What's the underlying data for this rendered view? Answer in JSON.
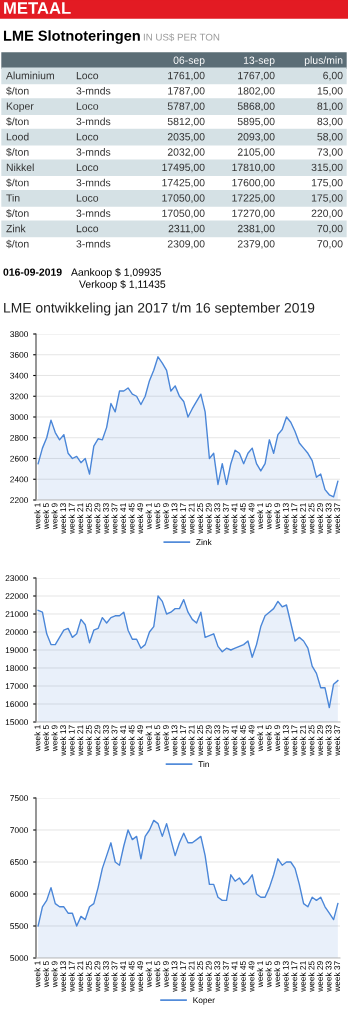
{
  "chart_data": [
    {
      "type": "other",
      "title": "METAAL",
      "subtitle": "LME Slotnoteringen",
      "categories": [
        null,
        null,
        "06-sep",
        "13-sep",
        "plus/min"
      ],
      "cell_labels": [
        [
          "Aluminium",
          "Loco",
          "1761,00",
          "1767,00",
          "6,00"
        ],
        [
          "$/ton",
          "3-mnds",
          "1787,00",
          "1802,00",
          "15,00"
        ],
        [
          "Koper",
          "Loco",
          "5787,00",
          "5868,00",
          "81,00"
        ],
        [
          "$/ton",
          "3-mnds",
          "5812,00",
          "5895,00",
          "83,00"
        ],
        [
          "Lood",
          "Loco",
          "2035,00",
          "2093,00",
          "58,00"
        ],
        [
          "$/ton",
          "3-mnds",
          "2032,00",
          "2105,00",
          "73,00"
        ],
        [
          "Nikkel",
          "Loco",
          "17495,00",
          "17810,00",
          "315,00"
        ],
        [
          "$/ton",
          "3-mnds",
          "17425,00",
          "17600,00",
          "175,00"
        ],
        [
          "Tin",
          "Loco",
          "17050,00",
          "17225,00",
          "175,00"
        ],
        [
          "$/ton",
          "3-mnds",
          "17050,00",
          "17270,00",
          "220,00"
        ],
        [
          "Zink",
          "Loco",
          "2311,00",
          "2381,00",
          "70,00"
        ],
        [
          "$/ton",
          "3-mnds",
          "2309,00",
          "2379,00",
          "70,00"
        ]
      ],
      "annotations": [
        "IN US$ PER TON",
        "016-09-2019",
        "Aankoop $ 1,09935",
        "Verkoop $ 1,11435",
        "LME ontwikkeling jan 2017 t/m 16 september 2019"
      ]
    },
    {
      "type": "area",
      "grid": "y",
      "legend": "bottom",
      "ylim": [
        2200,
        3800
      ],
      "yticks": [
        2200,
        2400,
        2600,
        2800,
        3000,
        3200,
        3400,
        3600,
        3800
      ],
      "categories": [
        "week 1",
        null,
        "week 5",
        null,
        "week 9",
        null,
        "week 13",
        null,
        "week 17",
        null,
        "week 21",
        null,
        "week 25",
        null,
        "week 29",
        null,
        "week 33",
        null,
        "week 37",
        null,
        "week 41",
        null,
        "week 45",
        null,
        "week 49",
        null,
        "week 1",
        null,
        "week 5",
        null,
        "week 9",
        null,
        "week 13",
        null,
        "week 17",
        null,
        "week 21",
        null,
        "week 25",
        null,
        "week 29",
        null,
        "week 33",
        null,
        "week 37",
        null,
        "week 41",
        null,
        "week 45",
        null,
        "week 49",
        null,
        "week 1",
        null,
        "week 5",
        null,
        "week 9",
        null,
        "week 13",
        null,
        "week 17",
        null,
        "week 21",
        null,
        "week 25",
        null,
        "week 29",
        null,
        "week 33",
        null,
        "week 37"
      ],
      "series": [
        {
          "name": "Zink",
          "color": "#4a86d8",
          "values": [
            2550,
            2700,
            2800,
            2970,
            2850,
            2780,
            2830,
            2650,
            2600,
            2620,
            2560,
            2600,
            2450,
            2720,
            2790,
            2780,
            2900,
            3130,
            3050,
            3250,
            3250,
            3280,
            3220,
            3200,
            3120,
            3200,
            3350,
            3450,
            3580,
            3520,
            3450,
            3250,
            3300,
            3200,
            3150,
            3000,
            3080,
            3150,
            3220,
            3050,
            2600,
            2650,
            2350,
            2550,
            2350,
            2550,
            2680,
            2650,
            2550,
            2650,
            2700,
            2550,
            2480,
            2550,
            2780,
            2650,
            2830,
            2880,
            3000,
            2950,
            2860,
            2750,
            2700,
            2650,
            2580,
            2420,
            2450,
            2300,
            2250,
            2230,
            2380
          ]
        }
      ]
    },
    {
      "type": "area",
      "grid": "y",
      "legend": "bottom",
      "ylim": [
        15000,
        23000
      ],
      "yticks": [
        15000,
        16000,
        17000,
        18000,
        19000,
        20000,
        21000,
        22000,
        23000
      ],
      "categories": [
        "week 1",
        null,
        "week 5",
        null,
        "week 9",
        null,
        "week 13",
        null,
        "week 17",
        null,
        "week 21",
        null,
        "week 25",
        null,
        "week 29",
        null,
        "week 33",
        null,
        "week 37",
        null,
        "week 41",
        null,
        "week 45",
        null,
        "week 49",
        null,
        "week 1",
        null,
        "week 5",
        null,
        "week 9",
        null,
        "week 13",
        null,
        "week 17",
        null,
        "week 21",
        null,
        "week 25",
        null,
        "week 29",
        null,
        "week 33",
        null,
        "week 37",
        null,
        "week 41",
        null,
        "week 45",
        null,
        "week 49",
        null,
        "week 1",
        null,
        "week 5",
        null,
        "week 9",
        null,
        "week 13",
        null,
        "week 17",
        null,
        "week 21",
        null,
        "week 25",
        null,
        "week 29",
        null,
        "week 33",
        null,
        "week 37"
      ],
      "series": [
        {
          "name": "Tin",
          "color": "#4a86d8",
          "values": [
            21200,
            21100,
            19900,
            19300,
            19300,
            19700,
            20100,
            20200,
            19700,
            19900,
            20700,
            20400,
            19400,
            20100,
            20200,
            20800,
            20500,
            20800,
            20900,
            20900,
            21100,
            20100,
            19600,
            19600,
            19100,
            19300,
            20000,
            20300,
            22000,
            21700,
            21000,
            21100,
            21300,
            21300,
            21800,
            21100,
            20700,
            20500,
            21100,
            19700,
            19800,
            19900,
            19200,
            18900,
            19100,
            19000,
            19100,
            19200,
            19300,
            19500,
            18600,
            19300,
            20300,
            20900,
            21100,
            21300,
            21700,
            21400,
            21500,
            20500,
            19500,
            19700,
            19500,
            19100,
            18100,
            17700,
            16900,
            16900,
            15800,
            17100,
            17300
          ]
        }
      ]
    },
    {
      "type": "area",
      "grid": "y",
      "legend": "bottom",
      "ylim": [
        5000,
        7500
      ],
      "yticks": [
        5000,
        5500,
        6000,
        6500,
        7000,
        7500
      ],
      "categories": [
        "week 1",
        null,
        "week 5",
        null,
        "week 9",
        null,
        "week 13",
        null,
        "week 17",
        null,
        "week 21",
        null,
        "week 25",
        null,
        "week 29",
        null,
        "week 33",
        null,
        "week 37",
        null,
        "week 41",
        null,
        "week 45",
        null,
        "week 49",
        null,
        "week 1",
        null,
        "week 5",
        null,
        "week 9",
        null,
        "week 13",
        null,
        "week 17",
        null,
        "week 21",
        null,
        "week 25",
        null,
        "week 29",
        null,
        "week 33",
        null,
        "week 37",
        null,
        "week 41",
        null,
        "week 45",
        null,
        "week 49",
        null,
        "week 1",
        null,
        "week 5",
        null,
        "week 9",
        null,
        "week 13",
        null,
        "week 17",
        null,
        "week 21",
        null,
        "week 25",
        null,
        "week 29",
        null,
        "week 33",
        null,
        "week 37"
      ],
      "series": [
        {
          "name": "Koper",
          "color": "#4a86d8",
          "values": [
            5500,
            5800,
            5900,
            6100,
            5850,
            5800,
            5800,
            5700,
            5700,
            5500,
            5650,
            5600,
            5800,
            5850,
            6100,
            6400,
            6600,
            6800,
            6500,
            6450,
            6750,
            7000,
            6850,
            6900,
            6550,
            6900,
            7000,
            7150,
            7100,
            6900,
            7100,
            6850,
            6600,
            6800,
            6950,
            6800,
            6800,
            6850,
            6900,
            6600,
            6150,
            6150,
            5950,
            5900,
            5900,
            6300,
            6200,
            6250,
            6150,
            6200,
            6300,
            6000,
            5950,
            5950,
            6100,
            6300,
            6550,
            6450,
            6500,
            6500,
            6400,
            6150,
            5850,
            5800,
            5950,
            5900,
            5950,
            5800,
            5700,
            5600,
            5850
          ]
        }
      ]
    }
  ]
}
